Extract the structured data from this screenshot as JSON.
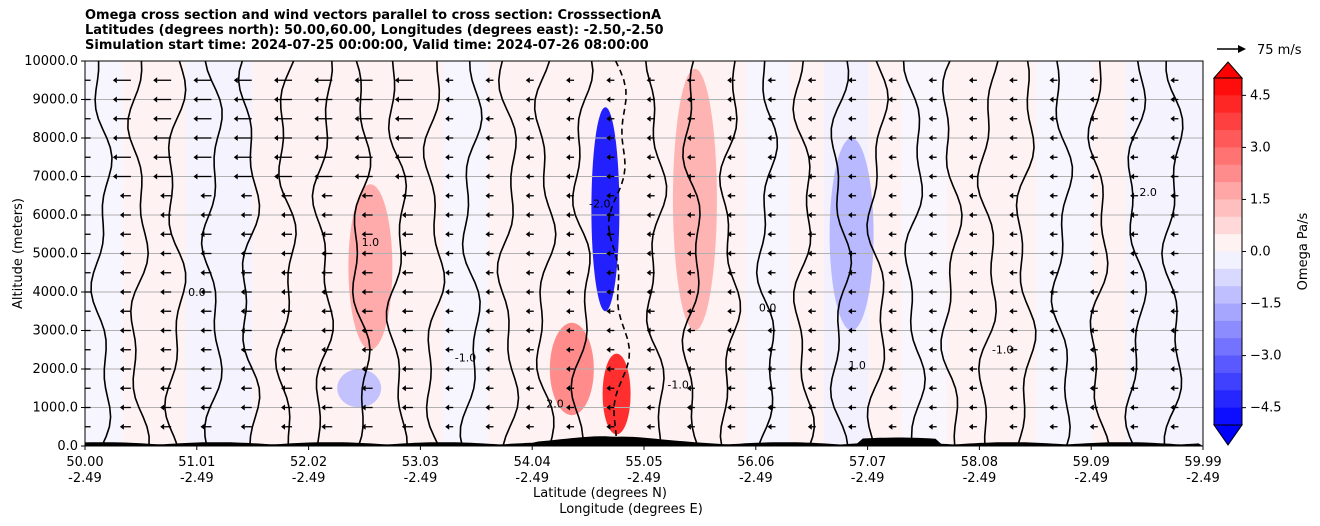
{
  "title_lines": [
    "Omega cross section and wind vectors parallel to cross section: CrosssectionA",
    "Latitudes (degrees north): 50.00,60.00, Longitudes (degrees east): -2.50,-2.50",
    "Simulation start time: 2024-07-25 00:00:00, Valid time: 2024-07-26 08:00:00"
  ],
  "chart_data": {
    "type": "heatmap",
    "ylabel": "Altitude (meters)",
    "xlabel_lines": [
      "Latitude (degrees N)",
      "Longitude (degrees E)"
    ],
    "x_ticks": [
      {
        "lat": "50.00",
        "lon": "-2.49"
      },
      {
        "lat": "51.01",
        "lon": "-2.49"
      },
      {
        "lat": "52.02",
        "lon": "-2.49"
      },
      {
        "lat": "53.03",
        "lon": "-2.49"
      },
      {
        "lat": "54.04",
        "lon": "-2.49"
      },
      {
        "lat": "55.05",
        "lon": "-2.49"
      },
      {
        "lat": "56.06",
        "lon": "-2.49"
      },
      {
        "lat": "57.07",
        "lon": "-2.49"
      },
      {
        "lat": "58.08",
        "lon": "-2.49"
      },
      {
        "lat": "59.09",
        "lon": "-2.49"
      },
      {
        "lat": "59.99",
        "lon": "-2.49"
      }
    ],
    "xlim": [
      50.0,
      59.99
    ],
    "y_ticks": [
      "0.0",
      "1000.0",
      "2000.0",
      "3000.0",
      "4000.0",
      "5000.0",
      "6000.0",
      "7000.0",
      "8000.0",
      "9000.0",
      "10000.0"
    ],
    "ylim": [
      0,
      10000
    ],
    "grid": "horizontal",
    "colorbar": {
      "label": "Omega Pa/s",
      "range": [
        -5.0,
        5.0
      ],
      "ticks": [
        "4.5",
        "3.0",
        "1.5",
        "0.0",
        "−1.5",
        "−3.0",
        "−4.5"
      ],
      "cmap": "bwr",
      "extend": "both"
    },
    "vector_key": {
      "label": "75 m/s"
    },
    "contour_labels": [
      "0.0",
      "1.0",
      "-1.0",
      "2.0",
      "-2.0",
      "-1.0"
    ],
    "omega_features": [
      {
        "lat": 54.65,
        "alt_bottom": 3500,
        "alt_top": 8800,
        "omega": -4.8
      },
      {
        "lat": 54.35,
        "alt_bottom": 800,
        "alt_top": 3200,
        "omega": 2.5
      },
      {
        "lat": 54.75,
        "alt_bottom": 300,
        "alt_top": 2400,
        "omega": 4.5
      },
      {
        "lat": 52.55,
        "alt_bottom": 2500,
        "alt_top": 6800,
        "omega": 1.8
      },
      {
        "lat": 55.45,
        "alt_bottom": 3000,
        "alt_top": 9800,
        "omega": 1.6
      },
      {
        "lat": 56.85,
        "alt_bottom": 3000,
        "alt_top": 8000,
        "omega": -1.5
      },
      {
        "lat": 52.45,
        "alt_bottom": 1000,
        "alt_top": 2000,
        "omega": -1.3
      }
    ],
    "colors": {
      "positive": "#ff0000",
      "negative": "#0000ff",
      "terrain": "#000000"
    }
  }
}
